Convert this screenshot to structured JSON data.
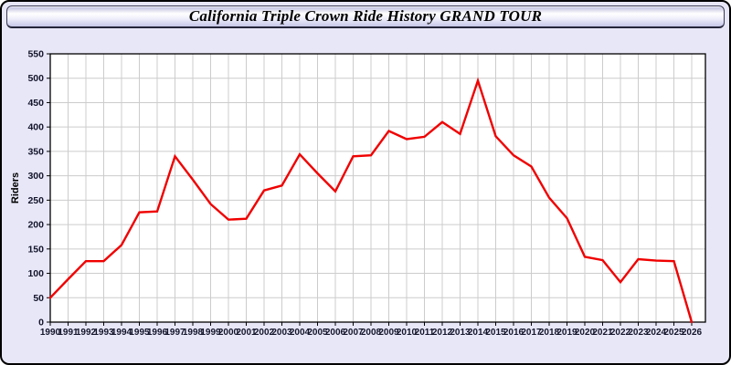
{
  "header": {
    "title": "California Triple Crown Ride History GRAND TOUR"
  },
  "chart_data": {
    "type": "line",
    "title": "California Triple Crown Ride History GRAND TOUR",
    "xlabel": "",
    "ylabel": "Riders",
    "x": [
      1990,
      1991,
      1992,
      1993,
      1994,
      1995,
      1996,
      1997,
      1998,
      1999,
      2000,
      2001,
      2002,
      2003,
      2004,
      2005,
      2006,
      2007,
      2008,
      2009,
      2010,
      2011,
      2012,
      2013,
      2014,
      2015,
      2016,
      2017,
      2018,
      2019,
      2020,
      2021,
      2022,
      2023,
      2024,
      2025,
      2026
    ],
    "series": [
      {
        "name": "Riders",
        "values": [
          50,
          88,
          125,
          125,
          158,
          225,
          227,
          340,
          292,
          242,
          210,
          212,
          270,
          280,
          344,
          305,
          268,
          340,
          342,
          392,
          375,
          380,
          410,
          386,
          495,
          381,
          342,
          319,
          255,
          213,
          134,
          127,
          82,
          129,
          126,
          125,
          0
        ]
      }
    ],
    "ylim": [
      0,
      550
    ],
    "ytick_interval": 50,
    "grid": true,
    "legend": "none",
    "colors": {
      "line": "#f00000",
      "plot_bg": "#ffffff",
      "panel_bg": "#e7e7f8",
      "grid": "#cccccc",
      "axis": "#000000",
      "tick_label": "#14142a"
    }
  }
}
